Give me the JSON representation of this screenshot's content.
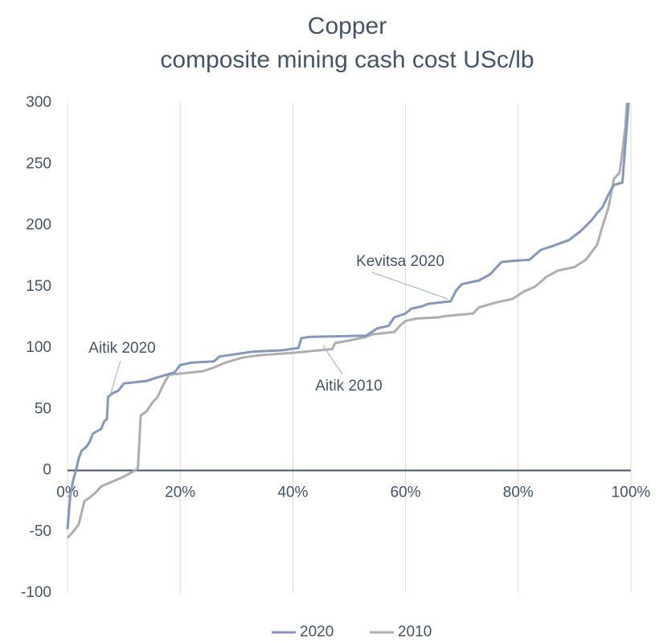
{
  "chart_data": {
    "type": "line",
    "title": [
      "Copper",
      "composite mining cash cost USc/lb"
    ],
    "xlim": [
      0,
      100
    ],
    "xticks": [
      {
        "value": 0,
        "label": "0%"
      },
      {
        "value": 20,
        "label": "20%"
      },
      {
        "value": 40,
        "label": "40%"
      },
      {
        "value": 60,
        "label": "60%"
      },
      {
        "value": 80,
        "label": "80%"
      },
      {
        "value": 100,
        "label": "100%"
      }
    ],
    "ylim": [
      -100,
      300
    ],
    "yticks": [
      -100,
      -50,
      0,
      50,
      100,
      150,
      200,
      250,
      300
    ],
    "xgrid": true,
    "ygrid": false,
    "legend": "bottom",
    "series": [
      {
        "name": "2020",
        "color": "#8497c0",
        "x": [
          0,
          0.5,
          1,
          1.5,
          2,
          2.5,
          3.5,
          4,
          4.5,
          6,
          6.5,
          7,
          7.2,
          8,
          9,
          10,
          14,
          16,
          19,
          20,
          22,
          26,
          27,
          30,
          33,
          38,
          41,
          41.5,
          43,
          53,
          55,
          57,
          58,
          60,
          61,
          63,
          64,
          68,
          69,
          70,
          73,
          75,
          77,
          79,
          82,
          84,
          86,
          89,
          91,
          93,
          94,
          95,
          96,
          97,
          98.5,
          99,
          99.6
        ],
        "values": [
          -48,
          -20,
          -8,
          0,
          10,
          16,
          20,
          24,
          30,
          34,
          40,
          42,
          60,
          63,
          65,
          71,
          73,
          76,
          80,
          86,
          88,
          89,
          93,
          95,
          97,
          98,
          100,
          108,
          109,
          110,
          116,
          118,
          125,
          128,
          132,
          134,
          136,
          138,
          147,
          152,
          155,
          160,
          170,
          171,
          172,
          180,
          183,
          188,
          195,
          204,
          210,
          215,
          225,
          233,
          235,
          265,
          300
        ]
      },
      {
        "name": "2010",
        "color": "#aeaeae",
        "x": [
          0,
          1,
          2,
          3,
          4,
          5,
          6,
          8,
          10,
          12,
          12.5,
          13,
          14,
          15,
          16,
          17,
          18,
          20,
          24,
          26,
          28,
          31,
          34,
          40,
          47,
          47.5,
          50,
          53,
          54,
          58,
          59,
          60,
          62,
          66,
          67,
          72,
          73,
          76,
          79,
          81,
          83,
          85,
          87,
          90,
          92,
          94,
          95,
          96,
          97,
          98,
          98.5,
          99,
          99.3
        ],
        "values": [
          -55,
          -50,
          -44,
          -25,
          -22,
          -18,
          -13,
          -9,
          -5,
          0,
          2,
          45,
          48,
          55,
          60,
          70,
          78,
          79,
          81,
          84,
          88,
          92,
          94,
          96,
          99,
          104,
          106,
          109,
          111,
          113,
          118,
          122,
          124,
          125,
          126,
          128,
          133,
          137,
          140,
          146,
          150,
          158,
          163,
          166,
          172,
          184,
          200,
          214,
          238,
          243,
          260,
          280,
          300
        ]
      }
    ],
    "annotations": [
      "Aitik 2020",
      "Kevitsa 2020",
      "Aitik 2010"
    ]
  }
}
